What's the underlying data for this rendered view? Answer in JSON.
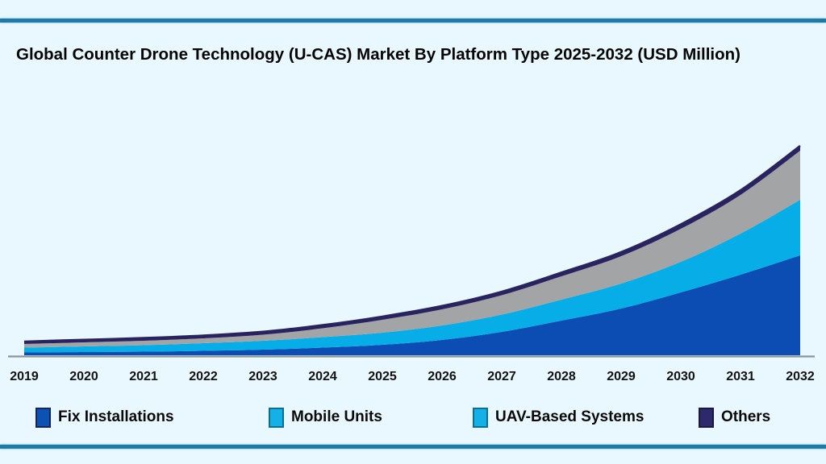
{
  "page": {
    "title": "Global Counter Drone Technology (U-CAS) Market By Platform Type 2025-2032 (USD Million)"
  },
  "colors": {
    "background": "#e9f7fe",
    "frame_line": "#1d7ca6",
    "axis_line": "#8a949c",
    "title_text": "#050505",
    "tick_text": "#121212"
  },
  "legend": {
    "position": "bottom",
    "items": [
      {
        "label": "Fix Installations",
        "swatch_color": "#0c51b4",
        "swatch_border": "#16245c"
      },
      {
        "label": "Mobile Units",
        "swatch_color": "#14b1e8",
        "swatch_border": "#0e6d93"
      },
      {
        "label": "UAV-Based Systems",
        "swatch_color": "#14b1e8",
        "swatch_border": "#0e6d93"
      },
      {
        "label": "Others",
        "swatch_color": "#2d2a6b",
        "swatch_border": "#1a1840"
      }
    ]
  },
  "chart_data": {
    "type": "area",
    "stacked": true,
    "title": "Global Counter Drone Technology (U-CAS) Market By Platform Type 2025-2032 (USD Million)",
    "xlabel": "",
    "ylabel": "",
    "grid": false,
    "y_axis_shown": false,
    "value_units": "relative index (no y-axis or data labels shown; values estimated from band thickness in pixels, baseline = 0)",
    "x": [
      2019,
      2020,
      2021,
      2022,
      2023,
      2024,
      2025,
      2026,
      2027,
      2028,
      2029,
      2030,
      2031,
      2032
    ],
    "series": [
      {
        "name": "Fix Installations",
        "fill_color": "#0b4db3",
        "values": [
          3.5,
          4,
          4.5,
          5.5,
          7,
          9.5,
          13,
          19,
          29,
          43,
          58,
          78,
          100,
          124
        ]
      },
      {
        "name": "Mobile Units",
        "fill_color": "#06ade7",
        "values": [
          6,
          7,
          8,
          9.5,
          11,
          13,
          15,
          18,
          21.5,
          26,
          31,
          38,
          51,
          69
        ]
      },
      {
        "name": "UAV-Based Systems",
        "fill_color": "#a3a4a6",
        "values": [
          4.5,
          5,
          5.5,
          6,
          7.5,
          11,
          16,
          20,
          24,
          29,
          34,
          41,
          48,
          61
        ]
      },
      {
        "name": "Others",
        "fill_color": "#29235f",
        "top_stroke_color": "#29235f",
        "values": [
          3,
          3.2,
          3.4,
          3.5,
          3.7,
          3.9,
          4,
          4.2,
          4.4,
          4.6,
          5,
          5.5,
          5.8,
          6
        ]
      }
    ],
    "note": "Third stacked band renders gray in the plot although its legend swatch is light blue, as in the source image. Dark navy line along the stack top is the thin 'Others' band."
  }
}
